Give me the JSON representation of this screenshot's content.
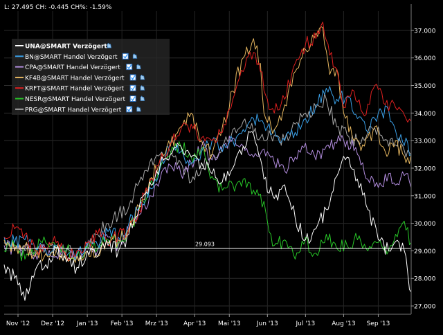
{
  "header": {
    "info_text": "L: 27.495 CH: -0.445 CH%: -1.59%"
  },
  "reference_line": {
    "value": 29.093,
    "label": "29.093",
    "color": "#ffffff"
  },
  "chart_data": {
    "type": "line",
    "title": "",
    "xlabel": "",
    "ylabel": "",
    "ylim": [
      26.7,
      37.7
    ],
    "yticks": [
      27,
      28,
      29,
      30,
      31,
      32,
      33,
      34,
      35,
      36,
      37
    ],
    "ytick_labels": [
      "27.000",
      "28.000",
      "29.000",
      "30.000",
      "31.000",
      "32.000",
      "33.000",
      "34.000",
      "35.000",
      "36.000",
      "37.000"
    ],
    "x_categories": [
      "Nov '12",
      "Dez '12",
      "Jan '13",
      "Feb '13",
      "Mrz '13",
      "Apr '13",
      "Mai '13",
      "Jun '13",
      "Jul '13",
      "Aug '13",
      "Sep '13"
    ],
    "x_tick_index": [
      8,
      28,
      48,
      68,
      88,
      110,
      130,
      152,
      174,
      196,
      216
    ],
    "grid": true,
    "legend_position": "top-left",
    "legend_checkbox_color": "#3399ff",
    "series": [
      {
        "name": "UNA@SMART Verzögert",
        "color": "#ffffff",
        "bold": true,
        "has_checkbox": false,
        "anchors": [
          [
            0,
            28.5
          ],
          [
            6,
            28.0
          ],
          [
            12,
            27.2
          ],
          [
            18,
            28.3
          ],
          [
            24,
            28.5
          ],
          [
            30,
            29.1
          ],
          [
            36,
            28.6
          ],
          [
            42,
            28.4
          ],
          [
            48,
            29.0
          ],
          [
            54,
            28.8
          ],
          [
            60,
            29.2
          ],
          [
            66,
            29.0
          ],
          [
            72,
            29.6
          ],
          [
            78,
            30.6
          ],
          [
            84,
            31.5
          ],
          [
            90,
            32.1
          ],
          [
            96,
            32.5
          ],
          [
            102,
            32.8
          ],
          [
            108,
            32.4
          ],
          [
            114,
            32.2
          ],
          [
            120,
            31.8
          ],
          [
            126,
            31.5
          ],
          [
            132,
            32.0
          ],
          [
            138,
            32.8
          ],
          [
            142,
            33.3
          ],
          [
            146,
            32.8
          ],
          [
            150,
            31.6
          ],
          [
            156,
            30.9
          ],
          [
            162,
            31.4
          ],
          [
            168,
            30.2
          ],
          [
            174,
            29.4
          ],
          [
            180,
            29.8
          ],
          [
            186,
            30.5
          ],
          [
            192,
            31.7
          ],
          [
            198,
            32.4
          ],
          [
            204,
            31.6
          ],
          [
            210,
            30.5
          ],
          [
            216,
            29.4
          ],
          [
            222,
            29.0
          ],
          [
            228,
            29.3
          ],
          [
            232,
            28.8
          ],
          [
            234,
            27.6
          ],
          [
            235,
            27.5
          ]
        ]
      },
      {
        "name": "BN@SMART Handel Verzögert",
        "color": "#3aa0e8",
        "bold": false,
        "has_checkbox": true,
        "anchors": [
          [
            0,
            29.5
          ],
          [
            6,
            29.3
          ],
          [
            12,
            29.4
          ],
          [
            18,
            29.1
          ],
          [
            24,
            29.0
          ],
          [
            30,
            29.2
          ],
          [
            36,
            28.8
          ],
          [
            42,
            28.9
          ],
          [
            48,
            29.3
          ],
          [
            54,
            29.2
          ],
          [
            60,
            29.7
          ],
          [
            66,
            29.5
          ],
          [
            72,
            30.0
          ],
          [
            78,
            30.6
          ],
          [
            84,
            31.3
          ],
          [
            90,
            32.0
          ],
          [
            96,
            32.9
          ],
          [
            102,
            32.6
          ],
          [
            108,
            32.2
          ],
          [
            114,
            32.6
          ],
          [
            120,
            33.0
          ],
          [
            126,
            32.6
          ],
          [
            132,
            33.0
          ],
          [
            138,
            33.4
          ],
          [
            144,
            33.8
          ],
          [
            150,
            33.6
          ],
          [
            156,
            33.4
          ],
          [
            162,
            33.0
          ],
          [
            168,
            33.3
          ],
          [
            174,
            33.8
          ],
          [
            180,
            34.3
          ],
          [
            186,
            34.9
          ],
          [
            192,
            34.5
          ],
          [
            198,
            34.6
          ],
          [
            204,
            33.8
          ],
          [
            210,
            33.3
          ],
          [
            216,
            34.0
          ],
          [
            222,
            34.1
          ],
          [
            228,
            33.0
          ],
          [
            232,
            33.1
          ],
          [
            235,
            32.5
          ]
        ]
      },
      {
        "name": "CPA@SMART Handel Verzögert",
        "color": "#b48ee0",
        "bold": false,
        "has_checkbox": true,
        "anchors": [
          [
            0,
            29.2
          ],
          [
            6,
            29.0
          ],
          [
            12,
            29.1
          ],
          [
            18,
            28.9
          ],
          [
            24,
            29.0
          ],
          [
            30,
            28.8
          ],
          [
            36,
            29.1
          ],
          [
            42,
            28.8
          ],
          [
            48,
            29.2
          ],
          [
            54,
            29.0
          ],
          [
            60,
            29.5
          ],
          [
            66,
            29.2
          ],
          [
            72,
            29.8
          ],
          [
            78,
            30.3
          ],
          [
            84,
            31.0
          ],
          [
            90,
            31.6
          ],
          [
            96,
            32.1
          ],
          [
            102,
            31.8
          ],
          [
            108,
            32.2
          ],
          [
            114,
            32.8
          ],
          [
            120,
            32.3
          ],
          [
            126,
            32.6
          ],
          [
            132,
            33.1
          ],
          [
            138,
            32.8
          ],
          [
            144,
            32.4
          ],
          [
            150,
            32.7
          ],
          [
            156,
            32.2
          ],
          [
            162,
            31.9
          ],
          [
            168,
            32.4
          ],
          [
            174,
            32.9
          ],
          [
            180,
            32.3
          ],
          [
            186,
            32.8
          ],
          [
            192,
            32.9
          ],
          [
            198,
            33.0
          ],
          [
            204,
            32.5
          ],
          [
            210,
            31.6
          ],
          [
            216,
            31.3
          ],
          [
            222,
            31.8
          ],
          [
            228,
            31.4
          ],
          [
            232,
            31.8
          ],
          [
            235,
            31.3
          ]
        ]
      },
      {
        "name": "KF4B@SMART Handel Verzögert",
        "color": "#e8b860",
        "bold": false,
        "has_checkbox": true,
        "anchors": [
          [
            0,
            29.4
          ],
          [
            6,
            29.0
          ],
          [
            12,
            29.2
          ],
          [
            18,
            28.8
          ],
          [
            24,
            28.9
          ],
          [
            30,
            29.0
          ],
          [
            36,
            28.7
          ],
          [
            42,
            28.8
          ],
          [
            48,
            29.0
          ],
          [
            54,
            28.8
          ],
          [
            60,
            29.3
          ],
          [
            66,
            29.4
          ],
          [
            72,
            29.8
          ],
          [
            78,
            30.6
          ],
          [
            84,
            31.6
          ],
          [
            90,
            32.3
          ],
          [
            96,
            32.8
          ],
          [
            102,
            33.5
          ],
          [
            108,
            34.0
          ],
          [
            114,
            33.0
          ],
          [
            120,
            32.5
          ],
          [
            126,
            33.5
          ],
          [
            132,
            34.8
          ],
          [
            138,
            36.0
          ],
          [
            144,
            36.7
          ],
          [
            148,
            35.8
          ],
          [
            150,
            34.0
          ],
          [
            156,
            33.4
          ],
          [
            162,
            34.3
          ],
          [
            168,
            35.5
          ],
          [
            174,
            36.3
          ],
          [
            180,
            36.9
          ],
          [
            184,
            37.1
          ],
          [
            188,
            35.4
          ],
          [
            192,
            35.6
          ],
          [
            196,
            34.0
          ],
          [
            202,
            33.0
          ],
          [
            208,
            32.8
          ],
          [
            214,
            33.5
          ],
          [
            220,
            32.6
          ],
          [
            226,
            33.0
          ],
          [
            232,
            32.2
          ],
          [
            235,
            32.5
          ]
        ]
      },
      {
        "name": "KRFT@SMART Handel Verzögert",
        "color": "#e02020",
        "bold": false,
        "has_checkbox": true,
        "anchors": [
          [
            0,
            29.5
          ],
          [
            6,
            29.8
          ],
          [
            12,
            29.6
          ],
          [
            18,
            29.0
          ],
          [
            24,
            29.1
          ],
          [
            30,
            29.3
          ],
          [
            36,
            28.8
          ],
          [
            42,
            29.0
          ],
          [
            48,
            29.3
          ],
          [
            54,
            29.6
          ],
          [
            60,
            29.2
          ],
          [
            66,
            29.6
          ],
          [
            72,
            29.8
          ],
          [
            78,
            30.5
          ],
          [
            84,
            31.5
          ],
          [
            90,
            32.3
          ],
          [
            96,
            32.9
          ],
          [
            102,
            33.4
          ],
          [
            108,
            33.6
          ],
          [
            114,
            33.1
          ],
          [
            120,
            33.0
          ],
          [
            126,
            33.3
          ],
          [
            132,
            34.5
          ],
          [
            138,
            35.5
          ],
          [
            144,
            36.2
          ],
          [
            148,
            35.5
          ],
          [
            152,
            34.5
          ],
          [
            156,
            34.0
          ],
          [
            162,
            34.5
          ],
          [
            168,
            35.8
          ],
          [
            174,
            36.5
          ],
          [
            180,
            36.7
          ],
          [
            184,
            37.3
          ],
          [
            188,
            36.1
          ],
          [
            192,
            35.6
          ],
          [
            196,
            34.2
          ],
          [
            202,
            34.8
          ],
          [
            208,
            33.9
          ],
          [
            214,
            35.0
          ],
          [
            220,
            34.3
          ],
          [
            226,
            34.2
          ],
          [
            232,
            33.8
          ],
          [
            235,
            33.7
          ]
        ]
      },
      {
        "name": "NESR@SMART Handel Verzögert",
        "color": "#28c828",
        "bold": false,
        "has_checkbox": true,
        "anchors": [
          [
            0,
            29.0
          ],
          [
            6,
            29.2
          ],
          [
            12,
            28.7
          ],
          [
            18,
            29.1
          ],
          [
            24,
            29.3
          ],
          [
            30,
            29.1
          ],
          [
            36,
            29.0
          ],
          [
            42,
            28.8
          ],
          [
            48,
            29.1
          ],
          [
            54,
            29.1
          ],
          [
            60,
            29.4
          ],
          [
            66,
            29.3
          ],
          [
            72,
            29.7
          ],
          [
            78,
            30.5
          ],
          [
            84,
            31.4
          ],
          [
            90,
            32.0
          ],
          [
            96,
            32.5
          ],
          [
            102,
            32.8
          ],
          [
            108,
            32.4
          ],
          [
            114,
            32.7
          ],
          [
            120,
            31.7
          ],
          [
            126,
            31.2
          ],
          [
            132,
            31.4
          ],
          [
            138,
            31.6
          ],
          [
            144,
            31.2
          ],
          [
            150,
            30.8
          ],
          [
            154,
            29.6
          ],
          [
            156,
            29.2
          ],
          [
            162,
            29.4
          ],
          [
            168,
            28.7
          ],
          [
            174,
            29.5
          ],
          [
            178,
            28.8
          ],
          [
            182,
            29.0
          ],
          [
            186,
            29.6
          ],
          [
            192,
            29.1
          ],
          [
            198,
            29.2
          ],
          [
            204,
            29.4
          ],
          [
            210,
            29.0
          ],
          [
            216,
            29.3
          ],
          [
            222,
            29.0
          ],
          [
            226,
            29.6
          ],
          [
            230,
            30.0
          ],
          [
            235,
            29.3
          ]
        ]
      },
      {
        "name": "PRG@SMART Handel Verzögert",
        "color": "#a8a8a8",
        "bold": false,
        "has_checkbox": true,
        "anchors": [
          [
            0,
            29.3
          ],
          [
            6,
            29.1
          ],
          [
            12,
            29.0
          ],
          [
            18,
            28.9
          ],
          [
            24,
            29.1
          ],
          [
            30,
            29.0
          ],
          [
            36,
            29.0
          ],
          [
            42,
            28.9
          ],
          [
            48,
            29.2
          ],
          [
            54,
            29.6
          ],
          [
            60,
            30.0
          ],
          [
            66,
            30.3
          ],
          [
            72,
            30.6
          ],
          [
            78,
            31.5
          ],
          [
            84,
            32.2
          ],
          [
            90,
            32.5
          ],
          [
            96,
            32.6
          ],
          [
            102,
            32.2
          ],
          [
            108,
            31.5
          ],
          [
            114,
            32.0
          ],
          [
            120,
            32.5
          ],
          [
            126,
            32.8
          ],
          [
            132,
            33.4
          ],
          [
            138,
            33.7
          ],
          [
            144,
            33.3
          ],
          [
            150,
            33.0
          ],
          [
            156,
            33.2
          ],
          [
            162,
            33.0
          ],
          [
            168,
            33.6
          ],
          [
            174,
            34.0
          ],
          [
            180,
            34.2
          ],
          [
            186,
            34.5
          ],
          [
            192,
            33.5
          ],
          [
            198,
            33.2
          ],
          [
            204,
            33.0
          ],
          [
            210,
            33.3
          ],
          [
            216,
            33.5
          ],
          [
            222,
            32.8
          ],
          [
            228,
            33.1
          ],
          [
            232,
            32.4
          ],
          [
            235,
            32.5
          ]
        ]
      }
    ]
  }
}
